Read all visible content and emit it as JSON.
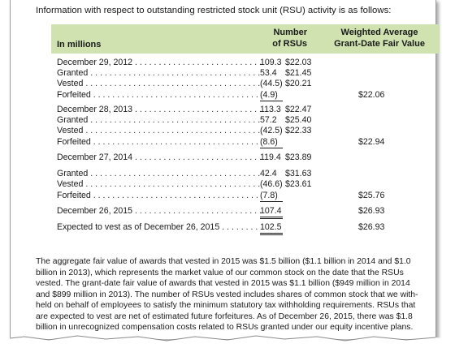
{
  "intro": "Information with respect to outstanding restricted stock unit (RSU) activity is as follows:",
  "columns": {
    "label": "In millions",
    "number_line1": "Number",
    "number_line2": "of RSUs",
    "wafv_line1": "Weighted Average",
    "wafv_line2": "Grant-Date Fair Value"
  },
  "rows": [
    {
      "label": "December 29, 2012",
      "number": "109.3",
      "fv": "$22.03",
      "right": ""
    },
    {
      "label": "Granted",
      "number": "53.4",
      "fv": "$21.45",
      "right": ""
    },
    {
      "label": "Vested",
      "number": "(44.5)",
      "fv": "$20.21",
      "right": ""
    },
    {
      "label": "Forfeited",
      "number": "(4.9)",
      "fv": "",
      "right": "$22.06"
    },
    {
      "label": "December 28, 2013",
      "number": "113.3",
      "fv": "$22.47",
      "right": ""
    },
    {
      "label": "Granted",
      "number": "57.2",
      "fv": "$25.40",
      "right": ""
    },
    {
      "label": "Vested",
      "number": "(42.5)",
      "fv": "$22.33",
      "right": ""
    },
    {
      "label": "Forfeited",
      "number": "(8.6)",
      "fv": "",
      "right": "$22.94"
    },
    {
      "label": "December 27, 2014",
      "number": "119.4",
      "fv": "$23.89",
      "right": ""
    },
    {
      "label": "Granted",
      "number": "42.4",
      "fv": "$31.63",
      "right": ""
    },
    {
      "label": "Vested",
      "number": "(46.6)",
      "fv": "$23.61",
      "right": ""
    },
    {
      "label": "Forfeited",
      "number": "(7.8)",
      "fv": "",
      "right": "$25.76"
    },
    {
      "label": "December 26, 2015",
      "number": "107.4",
      "fv": "",
      "right": "$26.93"
    },
    {
      "label": "Expected to vest as of December 26, 2015",
      "number": "102.5",
      "fv": "",
      "right": "$26.93"
    }
  ],
  "paragraph": [
    "The aggregate fair value of awards that vested in 2015 was $1.5 billion ($1.1 billion in 2014 and $1.0",
    "billion in 2013), which represents the market value of our common stock on the date that the RSUs",
    "vested. The grant-date fair value of awards that vested in 2015 was $1.1 billion ($949 million in 2014",
    "and $899 million in 2013). The number of RSUs vested includes shares of common stock that we with-",
    "held on behalf of employees to satisfy the minimum statutory tax withholding requirements. RSUs that",
    "are expected to vest are net of estimated future forfeitures. As of December 26, 2015, there was $1.8",
    "billion in unrecognized compensation costs related to RSUs granted under our equity incentive plans."
  ]
}
